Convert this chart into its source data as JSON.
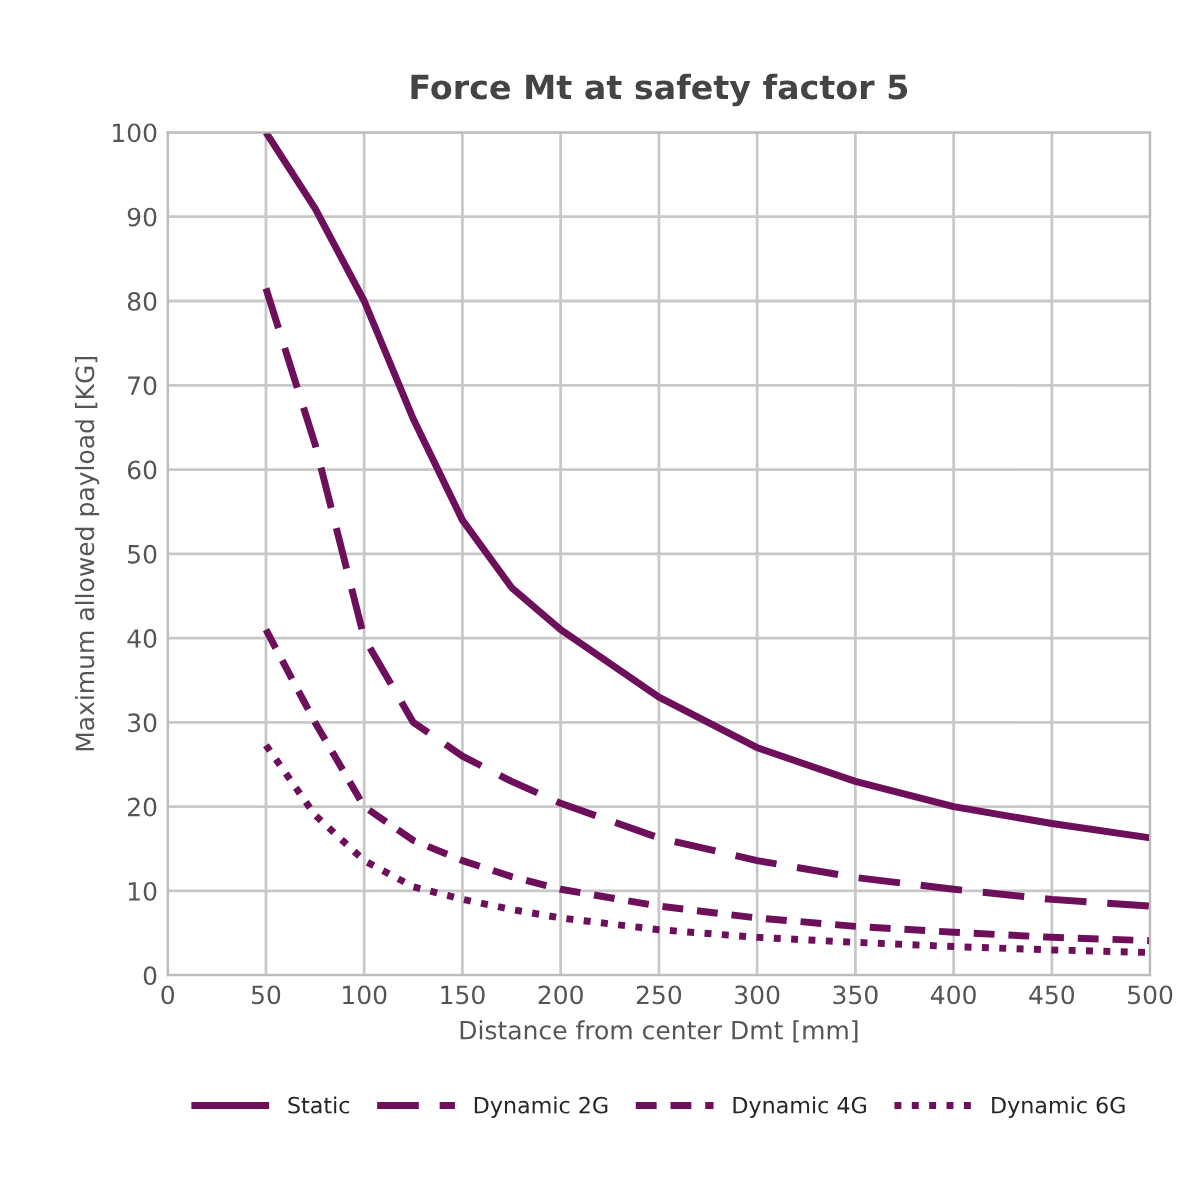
{
  "chart_data": {
    "type": "line",
    "title": "Force Mt at safety factor 5",
    "xlabel": "Distance from center Dmt [mm]",
    "ylabel": "Maximum allowed payload [KG]",
    "x": [
      50,
      75,
      100,
      125,
      150,
      175,
      200,
      250,
      300,
      350,
      400,
      450,
      500
    ],
    "series": [
      {
        "name": "Static",
        "color": "#6d0f5a",
        "line_style": "solid",
        "values": [
          100,
          91,
          80,
          66,
          54,
          46,
          41,
          33,
          27,
          23,
          20,
          18,
          16.3
        ]
      },
      {
        "name": "Dynamic 2G",
        "color": "#6d0f5a",
        "line_style": "dashed",
        "values": [
          81.5,
          63,
          40,
          30,
          26,
          23,
          20.4,
          16.3,
          13.6,
          11.6,
          10.2,
          9,
          8.2
        ]
      },
      {
        "name": "Dynamic 4G",
        "color": "#6d0f5a",
        "line_style": "dashed",
        "values": [
          41,
          30,
          20,
          16,
          13.6,
          11.7,
          10.2,
          8.2,
          6.8,
          5.8,
          5.1,
          4.5,
          4.1
        ]
      },
      {
        "name": "Dynamic 6G",
        "color": "#6d0f5a",
        "line_style": "dotted",
        "values": [
          27.3,
          19,
          13.6,
          10.5,
          9,
          7.8,
          6.8,
          5.4,
          4.5,
          3.9,
          3.4,
          3,
          2.7
        ]
      }
    ],
    "xlim": [
      0,
      500
    ],
    "xticks": [
      0,
      50,
      100,
      150,
      200,
      250,
      300,
      350,
      400,
      450,
      500
    ],
    "ylim": [
      0,
      100
    ],
    "yticks": [
      0,
      10,
      20,
      30,
      40,
      50,
      60,
      70,
      80,
      90,
      100
    ],
    "grid": true,
    "legend": "bottom",
    "marker": "none"
  }
}
